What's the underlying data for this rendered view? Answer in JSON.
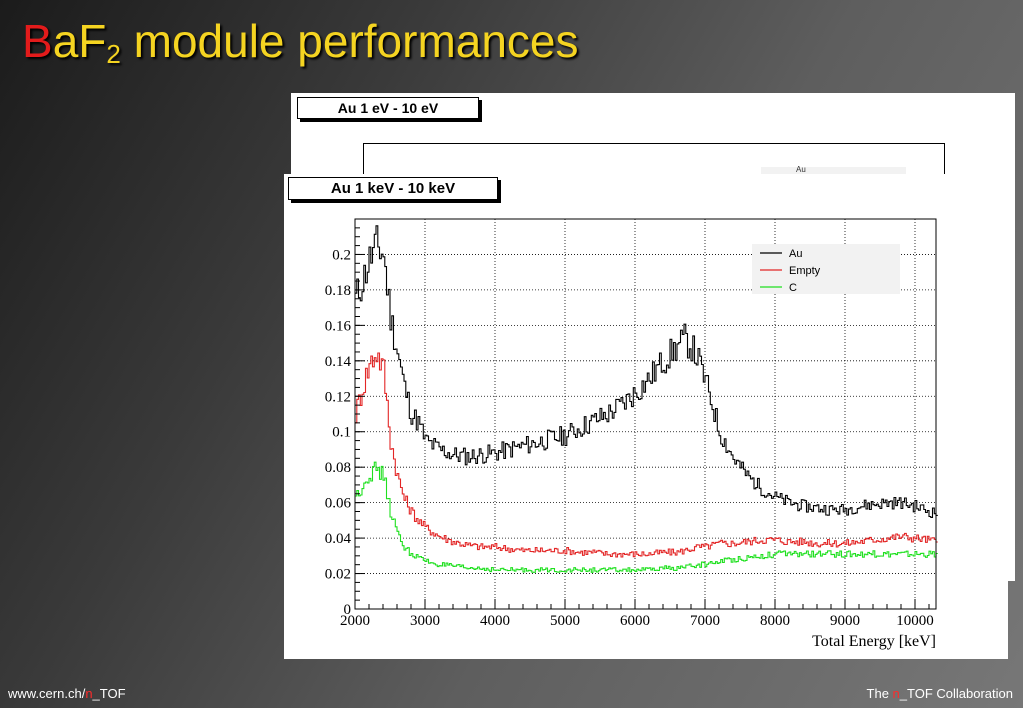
{
  "slide": {
    "title_first": "B",
    "title_rest": "aF",
    "title_sub": "2",
    "title_end": " module performances",
    "footer_left_a": "www.cern.ch/",
    "footer_left_n": "n",
    "footer_left_b": "_TOF",
    "footer_right_a": "The ",
    "footer_right_n": "n",
    "footer_right_b": "_TOF Collaboration",
    "colors": {
      "title": "#f5d421",
      "title_first": "#e31b1b",
      "n_red": "#ff2a2a"
    }
  },
  "back_chart": {
    "label": "Au  1 eV - 10 eV",
    "legend_first": "Au"
  },
  "chart_data": {
    "type": "line",
    "title": "Au  1 keV - 10 keV",
    "xlabel": "Total Energy  [keV]",
    "ylabel": "",
    "xlim": [
      2000,
      10300
    ],
    "ylim": [
      0,
      0.22
    ],
    "xticks": [
      2000,
      3000,
      4000,
      5000,
      6000,
      7000,
      8000,
      9000,
      10000
    ],
    "yticks": [
      0,
      0.02,
      0.04,
      0.06,
      0.08,
      0.1,
      0.12,
      0.14,
      0.16,
      0.18,
      0.2
    ],
    "ytick_labels": [
      "0",
      "0.02",
      "0.04",
      "0.06",
      "0.08",
      "0.1",
      "0.12",
      "0.14",
      "0.16",
      "0.18",
      "0.2"
    ],
    "xtick_labels": [
      "2000",
      "3000",
      "4000",
      "5000",
      "6000",
      "7000",
      "8000",
      "9000",
      "10000"
    ],
    "grid": true,
    "legend_position": "top-right",
    "x": [
      2000,
      2100,
      2200,
      2300,
      2400,
      2500,
      2600,
      2700,
      2800,
      2900,
      3000,
      3200,
      3400,
      3600,
      3800,
      4000,
      4200,
      4400,
      4600,
      4800,
      5000,
      5200,
      5400,
      5600,
      5800,
      6000,
      6200,
      6400,
      6600,
      6700,
      6800,
      6900,
      7000,
      7100,
      7200,
      7400,
      7600,
      7800,
      8000,
      8200,
      8400,
      8600,
      8800,
      9000,
      9200,
      9400,
      9600,
      9800,
      10000,
      10200,
      10300
    ],
    "series": [
      {
        "name": "Au",
        "color": "#000000",
        "values": [
          0.175,
          0.185,
          0.197,
          0.205,
          0.2,
          0.165,
          0.145,
          0.125,
          0.11,
          0.105,
          0.095,
          0.09,
          0.087,
          0.086,
          0.087,
          0.088,
          0.09,
          0.092,
          0.094,
          0.096,
          0.098,
          0.102,
          0.106,
          0.11,
          0.115,
          0.122,
          0.13,
          0.14,
          0.148,
          0.152,
          0.148,
          0.14,
          0.128,
          0.115,
          0.1,
          0.085,
          0.075,
          0.068,
          0.063,
          0.06,
          0.058,
          0.057,
          0.056,
          0.056,
          0.058,
          0.059,
          0.06,
          0.06,
          0.058,
          0.055,
          0.054
        ]
      },
      {
        "name": "Empty",
        "color": "#e32626",
        "values": [
          0.11,
          0.125,
          0.138,
          0.145,
          0.135,
          0.095,
          0.075,
          0.062,
          0.055,
          0.05,
          0.046,
          0.041,
          0.038,
          0.036,
          0.035,
          0.035,
          0.034,
          0.033,
          0.033,
          0.033,
          0.033,
          0.032,
          0.032,
          0.031,
          0.031,
          0.031,
          0.031,
          0.032,
          0.032,
          0.033,
          0.034,
          0.035,
          0.035,
          0.036,
          0.037,
          0.037,
          0.038,
          0.039,
          0.039,
          0.038,
          0.038,
          0.037,
          0.037,
          0.037,
          0.038,
          0.039,
          0.04,
          0.041,
          0.04,
          0.039,
          0.038
        ]
      },
      {
        "name": "C",
        "color": "#1fe01f",
        "values": [
          0.063,
          0.07,
          0.076,
          0.079,
          0.075,
          0.055,
          0.042,
          0.035,
          0.031,
          0.029,
          0.027,
          0.025,
          0.024,
          0.023,
          0.023,
          0.022,
          0.022,
          0.022,
          0.022,
          0.022,
          0.022,
          0.022,
          0.022,
          0.022,
          0.022,
          0.022,
          0.022,
          0.023,
          0.023,
          0.024,
          0.024,
          0.025,
          0.025,
          0.026,
          0.027,
          0.028,
          0.029,
          0.03,
          0.031,
          0.031,
          0.031,
          0.031,
          0.031,
          0.031,
          0.031,
          0.031,
          0.031,
          0.031,
          0.031,
          0.031,
          0.031
        ]
      }
    ]
  }
}
